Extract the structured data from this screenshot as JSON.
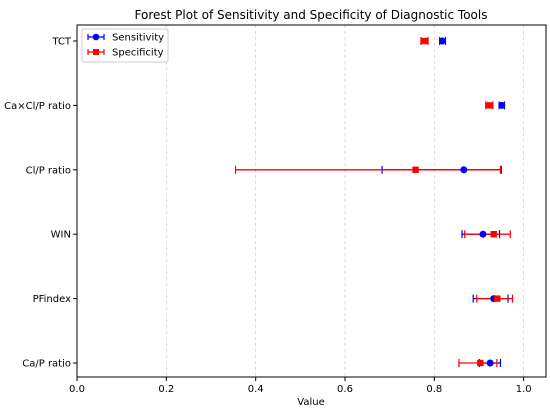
{
  "chart_data": {
    "type": "scatter",
    "title": "Forest Plot of Sensitivity and Specificity of Diagnostic Tools",
    "xlabel": "Value",
    "ylabel": "",
    "xlim": [
      0.0,
      1.05
    ],
    "xticks": [
      "0.0",
      "0.2",
      "0.4",
      "0.6",
      "0.8",
      "1.0"
    ],
    "grid": "vertical dashed",
    "legend_position": "top-left",
    "categories": [
      "TCT",
      "Ca×Cl/P ratio",
      "Cl/P ratio",
      "WIN",
      "PFindex",
      "Ca/P ratio"
    ],
    "series": [
      {
        "name": "Sensitivity",
        "color": "#0000ff",
        "marker": "circle",
        "values": [
          0.818,
          0.951,
          0.866,
          0.909,
          0.933,
          0.925
        ],
        "ci_low": [
          0.812,
          0.945,
          0.683,
          0.862,
          0.887,
          0.901
        ],
        "ci_high": [
          0.825,
          0.957,
          0.95,
          0.946,
          0.965,
          0.948
        ]
      },
      {
        "name": "Specificity",
        "color": "#ff0000",
        "marker": "square",
        "values": [
          0.778,
          0.923,
          0.758,
          0.933,
          0.941,
          0.903
        ],
        "ci_low": [
          0.77,
          0.915,
          0.355,
          0.868,
          0.895,
          0.855
        ],
        "ci_high": [
          0.786,
          0.931,
          0.948,
          0.97,
          0.975,
          0.94
        ]
      }
    ]
  }
}
